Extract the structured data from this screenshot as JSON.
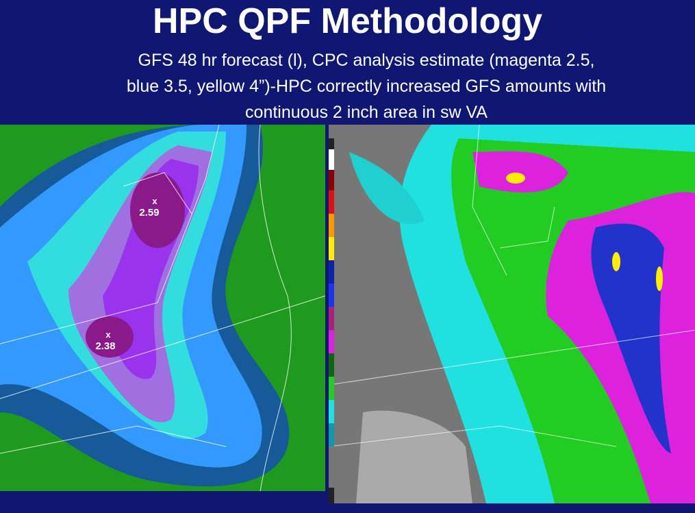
{
  "header": {
    "title": "HPC QPF Methodology",
    "subtitle_lines": [
      "GFS 48 hr forecast (l), CPC analysis estimate (magenta 2.5,",
      "blue 3.5, yellow 4”)-HPC correctly increased GFS amounts with",
      "continuous 2 inch area in sw VA"
    ]
  },
  "left_map": {
    "maxima": [
      {
        "marker": "x",
        "value": "2.59"
      },
      {
        "marker": "x",
        "value": "2.38"
      }
    ]
  }
}
